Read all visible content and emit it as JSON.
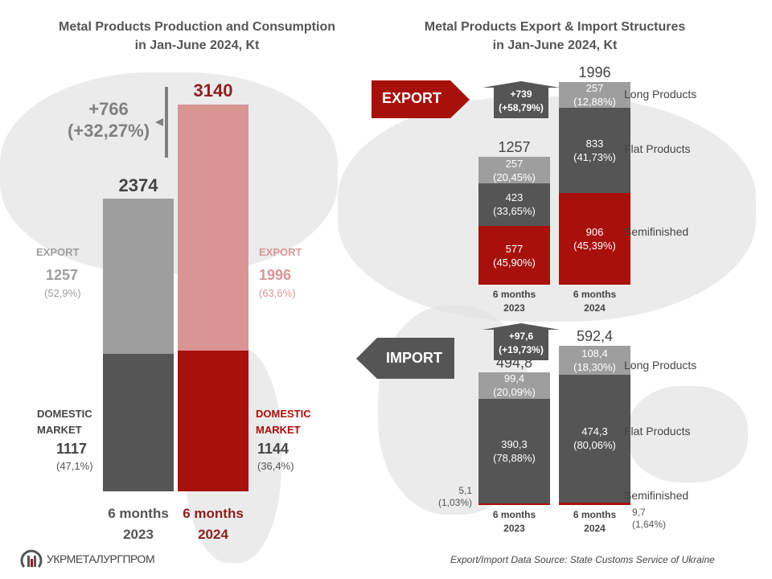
{
  "colors": {
    "light_gray": "#9e9e9e",
    "dark_gray": "#555555",
    "pink": "#d99594",
    "red": "#a8100c"
  },
  "left": {
    "title_line1": "Metal Products Production and Consumption",
    "title_line2": "in Jan-June 2024, Kt",
    "change_value": "+766",
    "change_pct": "(+32,27%)",
    "categories": [
      "6 months",
      "2023",
      "6 months",
      "2024"
    ],
    "total_2023": "2374",
    "total_2024": "3140",
    "export_label_2023": "EXPORT",
    "export_value_2023": "1257",
    "export_pct_2023": "(52,9%)",
    "export_label_2024": "EXPORT",
    "export_value_2024": "1996",
    "export_pct_2024": "(63,6%)",
    "domestic_label_2023": [
      "DOMESTIC",
      "MARKET"
    ],
    "domestic_value_2023": "1117",
    "domestic_pct_2023": "(47,1%)",
    "domestic_label_2024": [
      "DOMESTIC",
      "MARKET"
    ],
    "domestic_value_2024": "1144",
    "domestic_pct_2024": "(36,4%)"
  },
  "right": {
    "title_line1": "Metal Products Export & Import Structures",
    "title_line2": "in Jan-June 2024, Kt",
    "export_banner": "EXPORT",
    "import_banner": "IMPORT",
    "legend": [
      "Long Products",
      "Flat Products",
      "Semifinished"
    ],
    "source": "Export/Import Data Source: State Customs Service of Ukraine"
  },
  "chart_data": [
    {
      "type": "bar",
      "stacked": true,
      "title": "Metal Products Production and Consumption in Jan-June 2024, Kt",
      "categories": [
        "6 months 2023",
        "6 months 2024"
      ],
      "series": [
        {
          "name": "DOMESTIC MARKET",
          "values": [
            1117,
            1144
          ]
        },
        {
          "name": "EXPORT",
          "values": [
            1257,
            1996
          ]
        }
      ],
      "totals": [
        2374,
        3140
      ],
      "change": "+766 (+32,27%)"
    },
    {
      "type": "bar",
      "stacked": true,
      "title": "Export",
      "categories": [
        "6 months 2023",
        "6 months 2024"
      ],
      "series": [
        {
          "name": "Semifinished",
          "values": [
            577,
            906
          ],
          "labels": [
            "577",
            "906"
          ],
          "pcts": [
            "(45,90%)",
            "(45,39%)"
          ]
        },
        {
          "name": "Flat Products",
          "values": [
            423,
            833
          ],
          "labels": [
            "423",
            "833"
          ],
          "pcts": [
            "(33,65%)",
            "(41,73%)"
          ]
        },
        {
          "name": "Long Products",
          "values": [
            257,
            257
          ],
          "labels": [
            "257",
            "257"
          ],
          "pcts": [
            "(20,45%)",
            "(12,88%)"
          ]
        }
      ],
      "totals": [
        "1257",
        "1996"
      ],
      "change": [
        "+739",
        "(+58,79%)"
      ]
    },
    {
      "type": "bar",
      "stacked": true,
      "title": "Import",
      "categories": [
        "6 months 2023",
        "6 months 2024"
      ],
      "series": [
        {
          "name": "Semifinished",
          "values": [
            5.1,
            9.7
          ],
          "labels": [
            "5,1",
            "9,7"
          ],
          "pcts": [
            "(1,03%)",
            "(1,64%)"
          ]
        },
        {
          "name": "Flat Products",
          "values": [
            390.3,
            474.3
          ],
          "labels": [
            "390,3",
            "474,3"
          ],
          "pcts": [
            "(78,88%)",
            "(80,06%)"
          ]
        },
        {
          "name": "Long Products",
          "values": [
            99.4,
            108.4
          ],
          "labels": [
            "99,4",
            "108,4"
          ],
          "pcts": [
            "(20,09%)",
            "(18,30%)"
          ]
        }
      ],
      "totals": [
        "494,8",
        "592,4"
      ],
      "change": [
        "+97,6",
        "(+19,73%)"
      ]
    }
  ],
  "logo": {
    "text": "УКРМЕТАЛУРГПРОМ"
  }
}
